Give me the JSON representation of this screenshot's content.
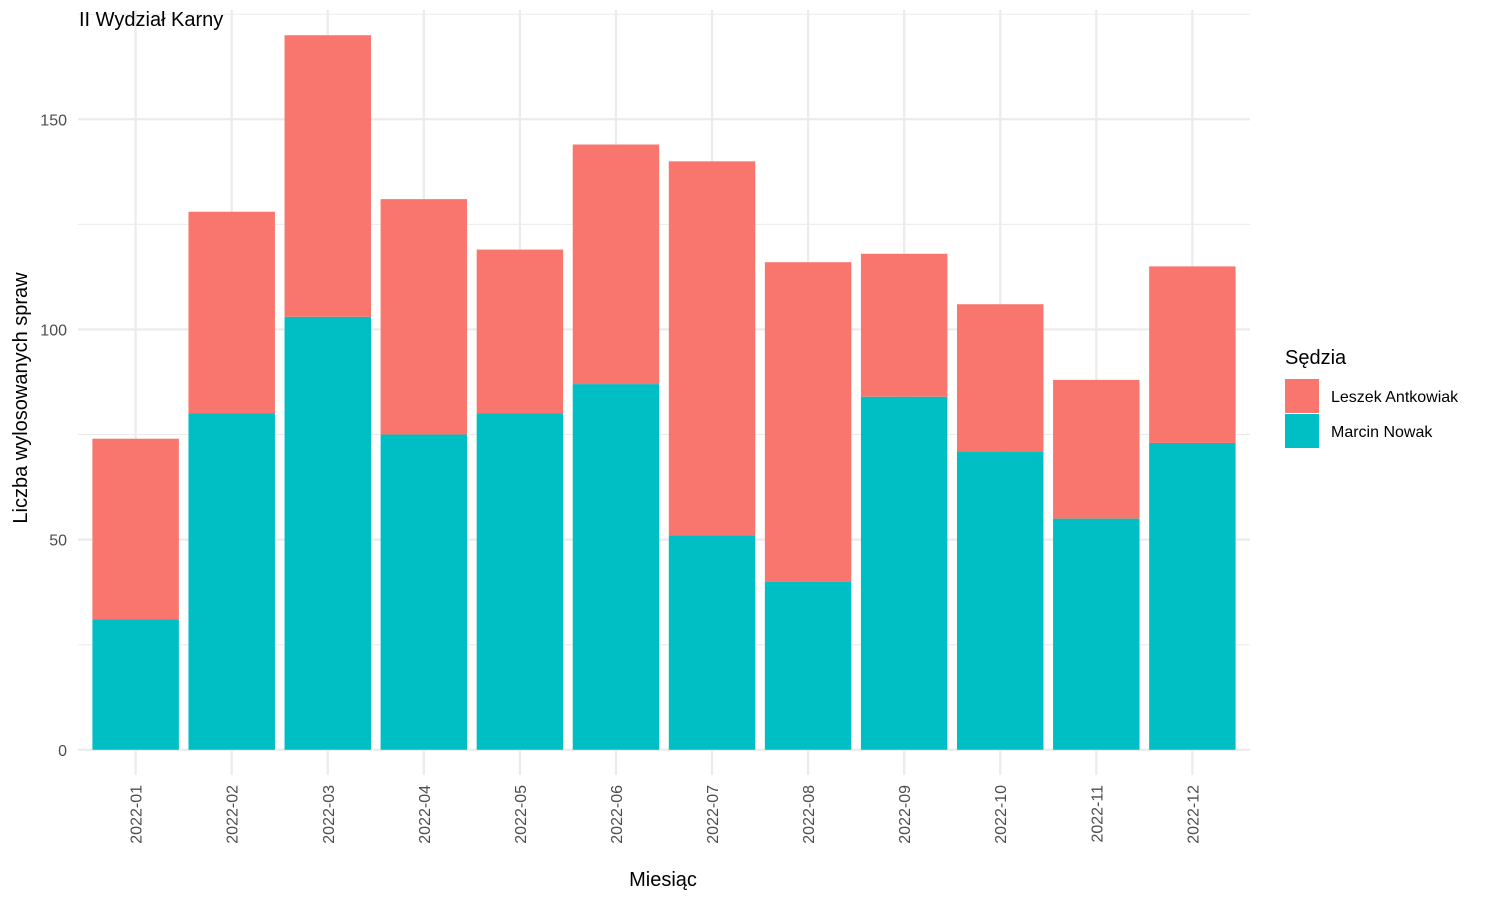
{
  "chart_data": {
    "type": "bar",
    "stacked": true,
    "title": "II Wydział Karny",
    "xlabel": "Miesiąc",
    "ylabel": "Liczba wylosowanych spraw",
    "ylim": [
      -6,
      176
    ],
    "yticks": [
      0,
      50,
      100,
      150
    ],
    "grid": true,
    "legend_position": "right",
    "categories": [
      "2022-01",
      "2022-02",
      "2022-03",
      "2022-04",
      "2022-05",
      "2022-06",
      "2022-07",
      "2022-08",
      "2022-09",
      "2022-10",
      "2022-11",
      "2022-12"
    ],
    "series": [
      {
        "name": "Marcin Nowak",
        "color": "#00BFC4",
        "values": [
          31,
          80,
          103,
          75,
          80,
          87,
          51,
          40,
          84,
          71,
          55,
          73
        ]
      },
      {
        "name": "Leszek Antkowiak",
        "color": "#F8766D",
        "values": [
          43,
          48,
          67,
          56,
          39,
          57,
          89,
          76,
          34,
          35,
          33,
          42
        ]
      }
    ],
    "legend": {
      "title": "Sędzia",
      "entries": [
        {
          "name": "Leszek Antkowiak",
          "color": "#F8766D"
        },
        {
          "name": "Marcin Nowak",
          "color": "#00BFC4"
        }
      ]
    },
    "colors": {
      "grid": "#ebebeb",
      "background": "#ffffff"
    }
  }
}
